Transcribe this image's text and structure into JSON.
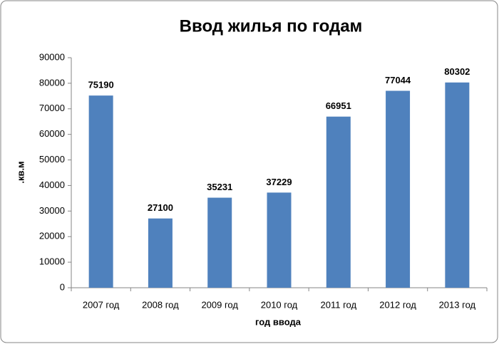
{
  "chart_data": {
    "type": "bar",
    "title": "Ввод жилья по годам",
    "x_label": "год ввода",
    "y_label": ".кв.м",
    "categories": [
      "2007 год",
      "2008 год",
      "2009 год",
      "2010 год",
      "2011 год",
      "2012 год",
      "2013 год"
    ],
    "values": [
      75190,
      27100,
      35231,
      37229,
      66951,
      77044,
      80302
    ],
    "color": "#4f81bd",
    "ylim": [
      0,
      90000
    ],
    "yticks": [
      0,
      10000,
      20000,
      30000,
      40000,
      50000,
      60000,
      70000,
      80000,
      90000
    ],
    "grid": false
  }
}
